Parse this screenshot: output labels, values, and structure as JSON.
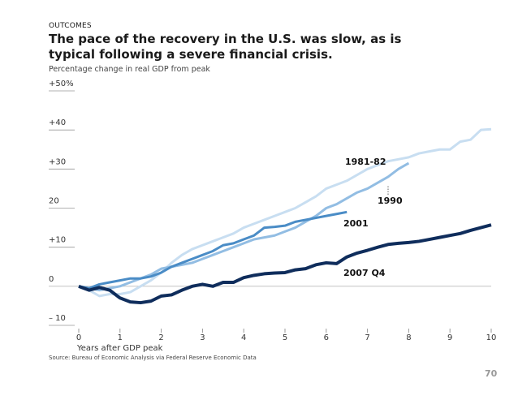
{
  "eyebrow": "OUTCOMES",
  "chart_data": {
    "type": "line",
    "title": "The pace of the recovery in the U.S. was slow, as is typical following a severe financial crisis.",
    "subtitle": "Percentage change in real GDP from peak",
    "x_label": "Years after GDP peak",
    "source": "Source: Bureau of Economic Analysis via Federal Reserve Economic Data",
    "ylim": [
      -10,
      50
    ],
    "yticks": [
      {
        "value": 50,
        "label": "+50%"
      },
      {
        "value": 40,
        "label": "+40"
      },
      {
        "value": 30,
        "label": "+30"
      },
      20,
      {
        "value": 10,
        "label": "+10"
      },
      0,
      {
        "value": -10,
        "label": "– 10"
      }
    ],
    "xlim": [
      0,
      10
    ],
    "xticks": [
      0,
      1,
      2,
      3,
      4,
      5,
      6,
      7,
      8,
      9,
      10
    ],
    "series": [
      {
        "name": "1981-82",
        "color": "#c8def1",
        "x": [
          0,
          0.25,
          0.5,
          0.75,
          1,
          1.25,
          1.5,
          1.75,
          2,
          2.25,
          2.5,
          2.75,
          3,
          3.25,
          3.5,
          3.75,
          4,
          4.25,
          4.5,
          4.75,
          5,
          5.25,
          5.5,
          5.75,
          6,
          6.25,
          6.5,
          6.75,
          7,
          7.25,
          7.5,
          7.75,
          8,
          8.25,
          8.5,
          8.75,
          9,
          9.25,
          9.5,
          9.75,
          10
        ],
        "values": [
          0,
          -1,
          -2.5,
          -2,
          -2,
          -1.5,
          0,
          1.5,
          3.5,
          6,
          8,
          9.5,
          10.5,
          11.5,
          12.5,
          13.5,
          15,
          16,
          17,
          18,
          19,
          20,
          21.5,
          23,
          25,
          26,
          27,
          28.5,
          30,
          31,
          32,
          32.5,
          33,
          34,
          34.5,
          35,
          35,
          37,
          37.5,
          40,
          40.2
        ]
      },
      {
        "name": "1990",
        "color": "#92bde3",
        "x": [
          0,
          0.25,
          0.5,
          0.75,
          1,
          1.25,
          1.5,
          1.75,
          2,
          2.25,
          2.5,
          2.75,
          3,
          3.25,
          3.5,
          3.75,
          4,
          4.25,
          4.5,
          4.75,
          5,
          5.25,
          5.5,
          5.75,
          6,
          6.25,
          6.5,
          6.75,
          7,
          7.25,
          7.5,
          7.75,
          8
        ],
        "values": [
          0,
          -0.5,
          -1,
          -0.5,
          0,
          1,
          2,
          3,
          4.5,
          5,
          5.5,
          6,
          7,
          8,
          9,
          10,
          11,
          12,
          12.5,
          13,
          14,
          15,
          16.5,
          18,
          20,
          21,
          22.5,
          24,
          25,
          26.5,
          28,
          30,
          31.5
        ]
      },
      {
        "name": "2001",
        "color": "#4a8cc6",
        "x": [
          0,
          0.25,
          0.5,
          0.75,
          1,
          1.25,
          1.5,
          1.75,
          2,
          2.25,
          2.5,
          2.75,
          3,
          3.25,
          3.5,
          3.75,
          4,
          4.25,
          4.5,
          4.75,
          5,
          5.25,
          5.5,
          5.75,
          6,
          6.25,
          6.5
        ],
        "values": [
          0,
          -0.5,
          0.5,
          1,
          1.5,
          2,
          2,
          2.5,
          3.5,
          5,
          6,
          7,
          8,
          9,
          10.5,
          11,
          12,
          13,
          15,
          15.2,
          15.5,
          16.5,
          17,
          17.5,
          18,
          18.5,
          19
        ]
      },
      {
        "name": "2007 Q4",
        "color": "#0f2d5c",
        "x": [
          0,
          0.25,
          0.5,
          0.75,
          1,
          1.25,
          1.5,
          1.75,
          2,
          2.25,
          2.5,
          2.75,
          3,
          3.25,
          3.5,
          3.75,
          4,
          4.25,
          4.5,
          4.75,
          5,
          5.25,
          5.5,
          5.75,
          6,
          6.25,
          6.5,
          6.75,
          7,
          7.25,
          7.5,
          7.75,
          8,
          8.25,
          8.5,
          8.75,
          9,
          9.25,
          9.5,
          9.75,
          10
        ],
        "values": [
          0,
          -1,
          -0.3,
          -1,
          -3,
          -4,
          -4.2,
          -3.8,
          -2.5,
          -2.2,
          -1,
          0,
          0.5,
          0,
          1,
          1,
          2.2,
          2.8,
          3.2,
          3.4,
          3.5,
          4.2,
          4.5,
          5.5,
          6,
          5.8,
          7.5,
          8.5,
          9.2,
          10,
          10.7,
          11,
          11.2,
          11.5,
          12,
          12.5,
          13,
          13.5,
          14.3,
          15,
          15.7
        ]
      }
    ],
    "page_number": "70"
  }
}
